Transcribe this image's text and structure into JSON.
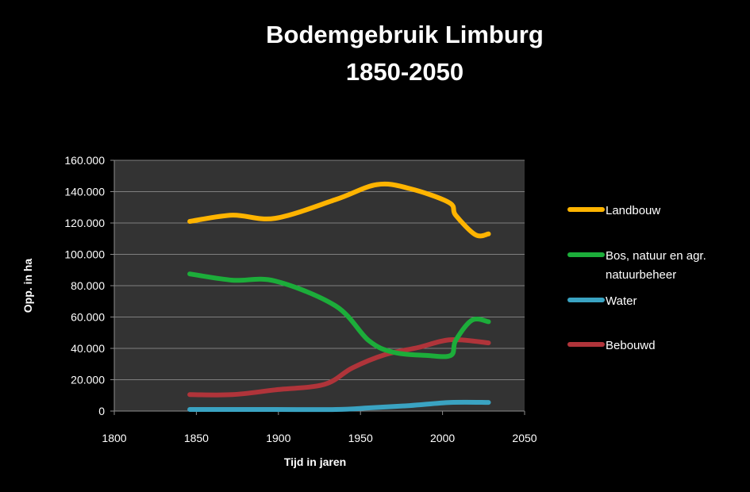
{
  "chart_data": {
    "type": "line",
    "title_lines": [
      "Bodemgebruik Limburg",
      "1850-2050"
    ],
    "xlabel": "Tijd in jaren",
    "ylabel": "Opp. in ha",
    "xlim": [
      1800,
      2050
    ],
    "ylim": [
      0,
      160000
    ],
    "x_ticks": [
      1800,
      1850,
      1900,
      1950,
      2000,
      2050
    ],
    "x_tick_labels": [
      "1800",
      "1850",
      "1900",
      "1950",
      "2000",
      "2050"
    ],
    "y_ticks": [
      0,
      20000,
      40000,
      60000,
      80000,
      100000,
      120000,
      140000,
      160000
    ],
    "y_tick_labels": [
      "0",
      "20.000",
      "40.000",
      "60.000",
      "80.000",
      "100.000",
      "120.000",
      "140.000",
      "160.000"
    ],
    "grid": "horizontal",
    "legend_position": "right",
    "plot_background": "#333333",
    "series": [
      {
        "name": "Landbouw",
        "name_lines": [
          "Landbouw"
        ],
        "color": "#ffb400",
        "x": [
          1846,
          1872,
          1898,
          1935,
          1960,
          1980,
          2004,
          2008,
          2020,
          2028
        ],
        "y": [
          121000,
          125000,
          123000,
          135000,
          144500,
          142000,
          133000,
          125000,
          112500,
          113000
        ]
      },
      {
        "name": "Bos, natuur en agr. natuurbeheer",
        "name_lines": [
          "Bos, natuur en agr.",
          "natuurbeheer"
        ],
        "color": "#1cad3a",
        "x": [
          1846,
          1872,
          1898,
          1935,
          1955,
          1970,
          1990,
          2005,
          2008,
          2018,
          2028
        ],
        "y": [
          87500,
          83500,
          83000,
          67000,
          45000,
          37500,
          35500,
          35500,
          45000,
          58000,
          57000
        ]
      },
      {
        "name": "Water",
        "name_lines": [
          "Water"
        ],
        "color": "#3aa3c2",
        "x": [
          1846,
          1898,
          1935,
          1955,
          1980,
          2005,
          2028
        ],
        "y": [
          1000,
          1000,
          1000,
          2000,
          3500,
          5500,
          5500
        ]
      },
      {
        "name": "Bebouwd",
        "name_lines": [
          "Bebouwd"
        ],
        "color": "#b0343a",
        "x": [
          1846,
          1872,
          1898,
          1928,
          1945,
          1965,
          1985,
          2005,
          2028
        ],
        "y": [
          10500,
          10500,
          13500,
          17000,
          27500,
          36000,
          40500,
          45500,
          43500
        ]
      }
    ]
  }
}
